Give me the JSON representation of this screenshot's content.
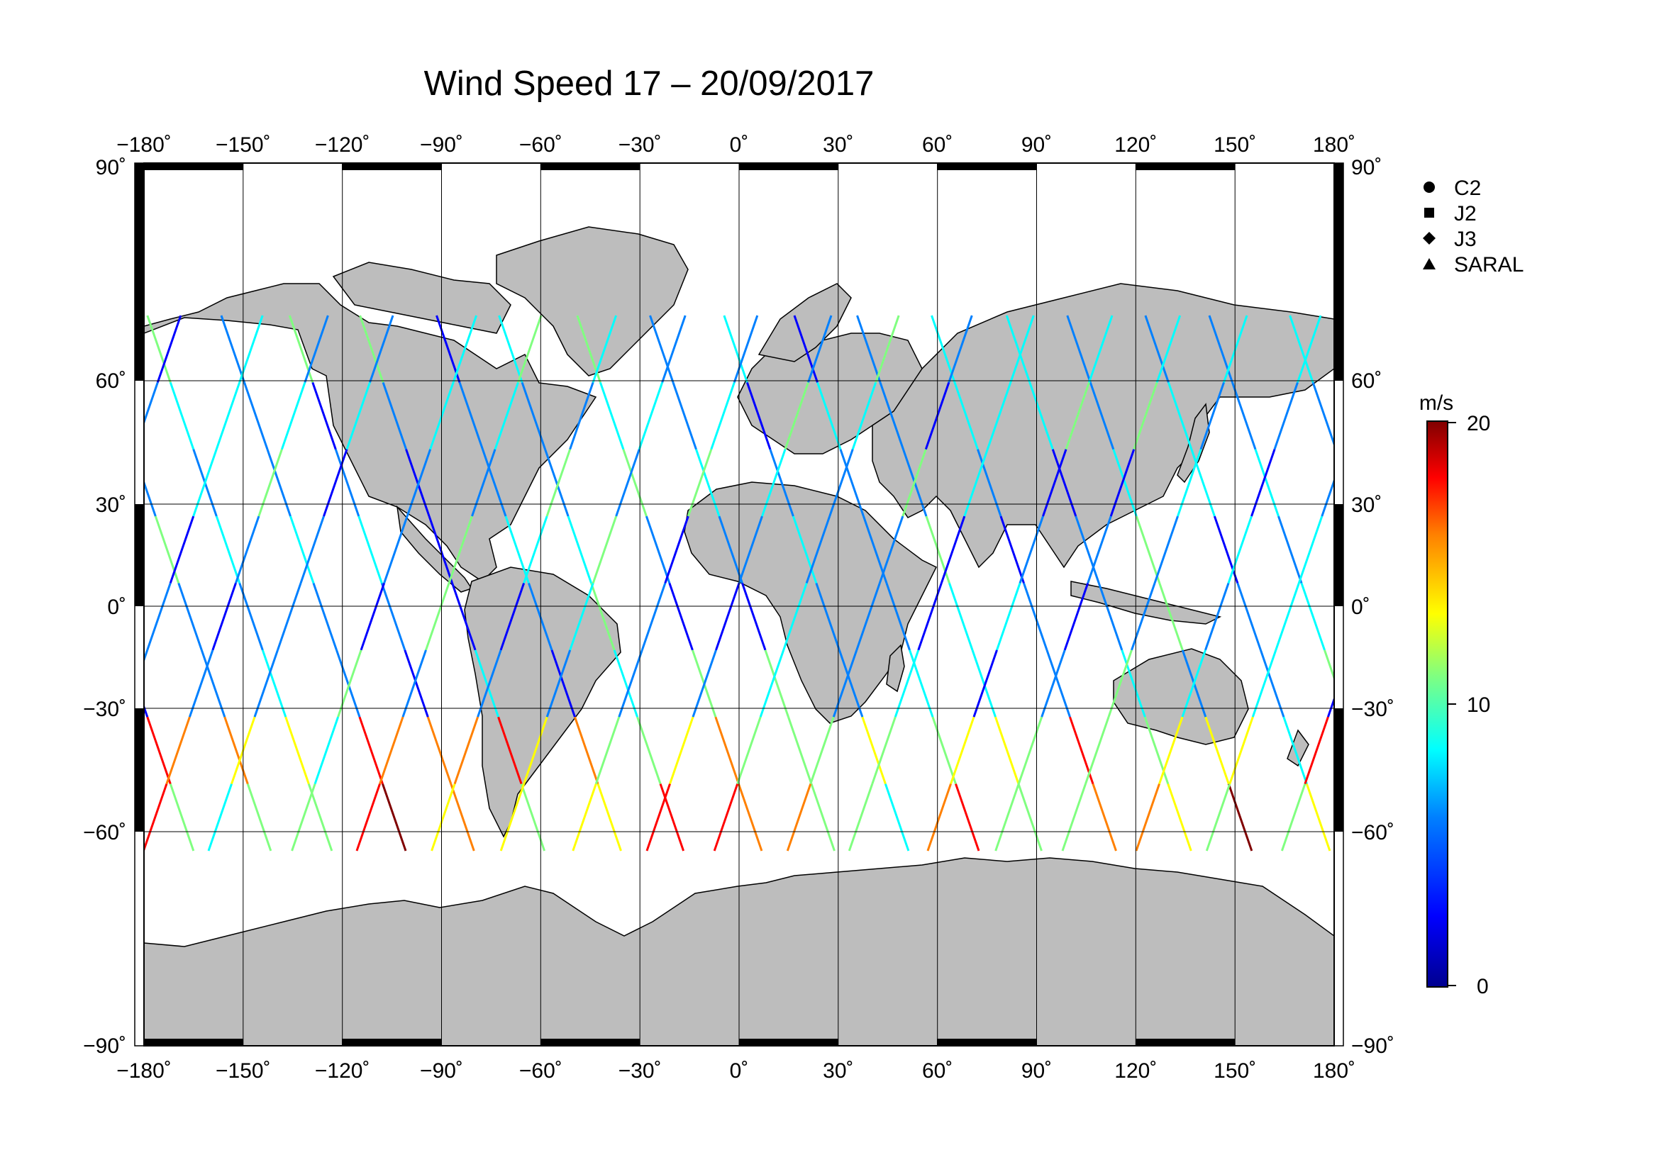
{
  "title": "Wind Speed 17 – 20/09/2017",
  "map": {
    "lon_range": [
      -180,
      180
    ],
    "lat_range": [
      -90,
      90
    ],
    "lon_ticks": [
      "−180˚",
      "−150˚",
      "−120˚",
      "−90˚",
      "−60˚",
      "−30˚",
      "0˚",
      "30˚",
      "60˚",
      "90˚",
      "120˚",
      "150˚",
      "180˚"
    ],
    "lat_ticks_left": [
      "90˚",
      "60˚",
      "30˚",
      "0˚",
      "−30˚",
      "−60˚",
      "−90˚"
    ],
    "lat_ticks_right": [
      "90˚",
      "60˚",
      "30˚",
      "0˚",
      "−30˚",
      "−60˚",
      "−90˚"
    ],
    "grid": true,
    "land_color": "#bdbdbd",
    "ocean_color": "#ffffff"
  },
  "legend": {
    "items": [
      {
        "label": "C2",
        "symbol": "circle"
      },
      {
        "label": "J2",
        "symbol": "square"
      },
      {
        "label": "J3",
        "symbol": "diamond"
      },
      {
        "label": "SARAL",
        "symbol": "triangle"
      }
    ]
  },
  "colorbar": {
    "unit": "m/s",
    "min": 0,
    "max": 20,
    "tick_labels": [
      "20",
      "10",
      "0"
    ],
    "colormap": [
      "#00008f",
      "#0000ff",
      "#0080ff",
      "#00ffff",
      "#80ff80",
      "#ffff00",
      "#ff8000",
      "#ff0000",
      "#800000"
    ]
  },
  "chart_data": {
    "type": "scatter",
    "title": "Wind Speed 17 – 20/09/2017",
    "xlabel": "",
    "ylabel": "",
    "xlim": [
      -180,
      180
    ],
    "ylim": [
      -90,
      90
    ],
    "value_unit": "m/s",
    "value_range": [
      0,
      20
    ],
    "series": [
      {
        "name": "C2"
      },
      {
        "name": "J2"
      },
      {
        "name": "J3"
      },
      {
        "name": "SARAL"
      }
    ]
  }
}
